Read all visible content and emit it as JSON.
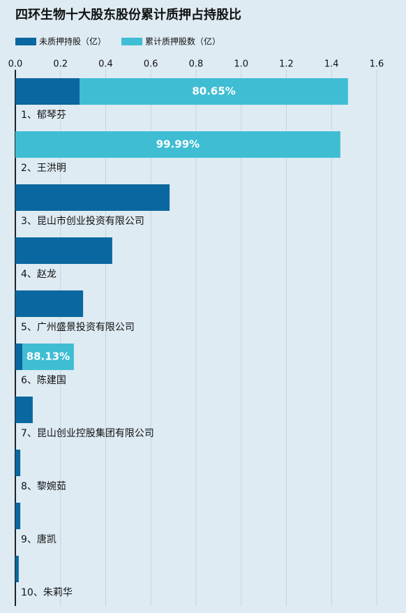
{
  "chart_data": {
    "type": "stacked-barh",
    "title": "四环生物十大股东股份累计质押占持股比",
    "categories": [
      "1、郁琴芬",
      "2、王洪明",
      "3、昆山市创业投资有限公司",
      "4、赵龙",
      "5、广州盛景投资有限公司",
      "6、陈建国",
      "7、昆山创业控股集团有限公司",
      "8、黎婉茹",
      "9、唐凯",
      "10、朱莉华"
    ],
    "series": [
      {
        "name": "未质押持股（亿）",
        "color": "#0b679f",
        "values": [
          0.285,
          0,
          0.683,
          0.429,
          0.3,
          0.031,
          0.077,
          0.022,
          0.022,
          0.015
        ]
      },
      {
        "name": "累计质押股数（亿）",
        "color": "#3fbdd3",
        "values": [
          1.188,
          1.439,
          null,
          null,
          null,
          0.228,
          null,
          null,
          null,
          null
        ]
      }
    ],
    "pledge_ratio": {
      "values": [
        80.65,
        99.99,
        null,
        null,
        null,
        88.13,
        null,
        null,
        null,
        null
      ],
      "labels": [
        "80.65%",
        "99.99%",
        null,
        null,
        null,
        "88.13%",
        null,
        null,
        null,
        null
      ]
    },
    "xlim": [
      0,
      1.6
    ],
    "xticks": [
      {
        "value": 0,
        "label": "0.0"
      },
      0.2,
      0.4,
      0.6,
      0.8,
      {
        "value": 1,
        "label": "1.0"
      },
      1.2,
      1.4,
      1.6
    ],
    "grid": true
  }
}
